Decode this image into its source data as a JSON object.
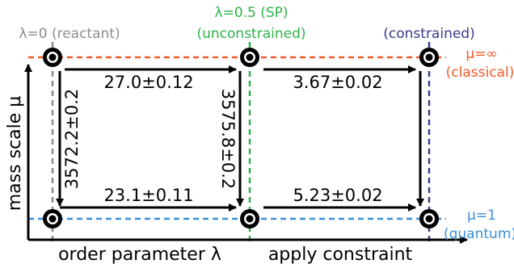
{
  "colors": {
    "gray": "#8c8c8c",
    "green": "#2cb34a",
    "navy": "#3a3a8c",
    "red": "#f05a28",
    "blue": "#3a8fd9",
    "black": "#000000"
  },
  "headers": {
    "reactant": "λ=0 (reactant)",
    "sp_line1": "λ=0.5 (SP)",
    "sp_line2": "(unconstrained)",
    "constrained": "(constrained)"
  },
  "side_labels": {
    "classical_mu": "μ=∞",
    "classical": "(classical)",
    "quantum_mu": "μ=1",
    "quantum": "(quantum)"
  },
  "edges": {
    "top_left": "27.0±0.12",
    "top_right": "3.67±0.02",
    "bottom_left": "23.1±0.11",
    "bottom_right": "5.23±0.02",
    "vertical_left": "3572.2±0.2",
    "vertical_middle": "3575.8±0.2"
  },
  "axes": {
    "y": "mass scale μ",
    "x_left": "order parameter λ",
    "x_right": "apply constraint"
  }
}
